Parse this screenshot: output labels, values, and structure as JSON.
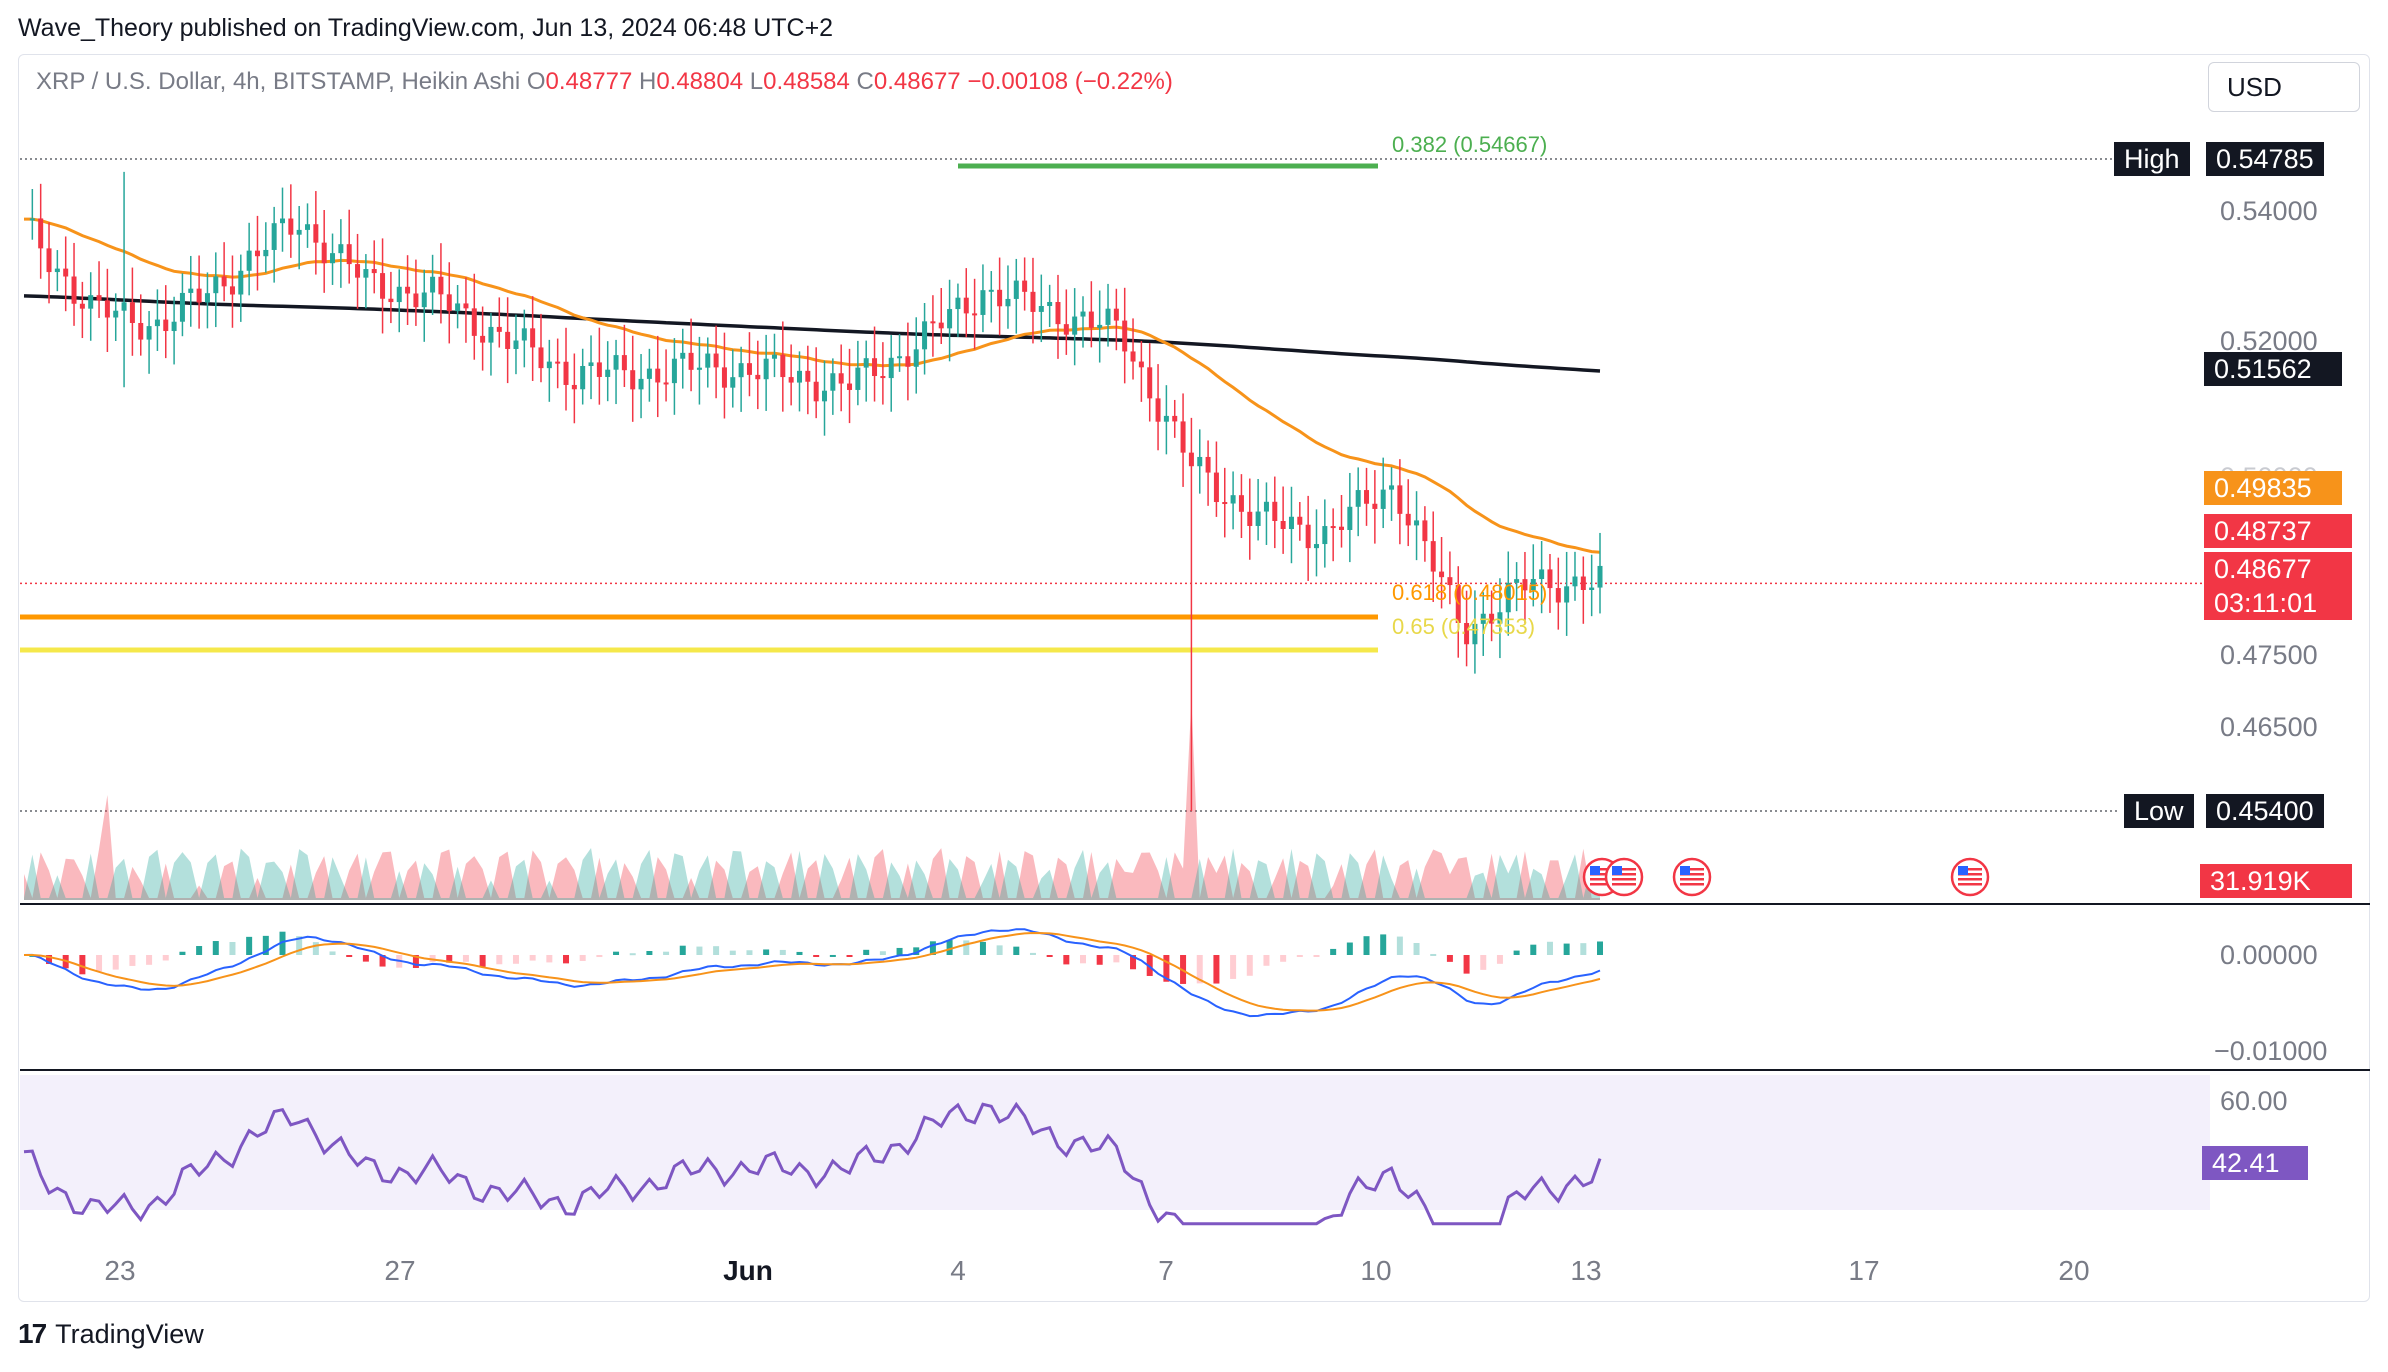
{
  "caption": "Wave_Theory published on TradingView.com, Jun 13, 2024 06:48 UTC+2",
  "symbol": {
    "name": "XRP / U.S. Dollar, 4h, BITSTAMP, Heikin Ashi",
    "o_label": "O",
    "o": "0.48777",
    "h_label": "H",
    "h": "0.48804",
    "l_label": "L",
    "l": "0.48584",
    "c_label": "C",
    "c": "0.48677",
    "change": "−0.00108 (−0.22%)"
  },
  "currency_button": "USD",
  "colors": {
    "up": "#26a69a",
    "down": "#f23645",
    "ema_orange": "#f7931a",
    "ema_black": "#131722",
    "fib_green": "#4caf50",
    "fib_orange": "#ff9800",
    "fib_yellow": "#f5e84a",
    "macd_blue": "#2962ff",
    "rsi_purple": "#7e57c2"
  },
  "price_axis": {
    "ticks": [
      "0.54000",
      "0.52000",
      "0.47500",
      "0.46500"
    ],
    "high_label": "High",
    "high_value": "0.54785",
    "low_label": "Low",
    "low_value": "0.45400",
    "ema_black_value": "0.51562",
    "ema_orange_value": "0.49835",
    "last_price_top": "0.48737",
    "last_price": "0.48677",
    "countdown": "03:11:01",
    "hidden_tick": "0.50000"
  },
  "fib_levels": [
    {
      "label": "0.382 (0.54667)",
      "color": "green"
    },
    {
      "label": "0.618 (0.48015)",
      "color": "orange"
    },
    {
      "label": "0.65 (0.47353)",
      "color": "yellow"
    }
  ],
  "volume_value": "31.919K",
  "macd_axis": {
    "ticks": [
      "0.00000",
      "−0.01000"
    ]
  },
  "rsi_axis": {
    "tick": "60.00",
    "value": "42.41"
  },
  "time_axis": {
    "labels": [
      "23",
      "27",
      "Jun",
      "4",
      "7",
      "10",
      "13",
      "17",
      "20"
    ]
  },
  "footer": {
    "brand": "TradingView",
    "logo": "17"
  },
  "chart_data": {
    "type": "candlestick",
    "title": "XRP / U.S. Dollar, 4h, BITSTAMP, Heikin Ashi",
    "timeframe": "4h",
    "x_range": [
      "May 22",
      "Jun 13"
    ],
    "y_range": [
      0.454,
      0.549
    ],
    "high": 0.54785,
    "low": 0.454,
    "close_points": [
      [
        "May 22",
        0.538
      ],
      [
        "May 23",
        0.526
      ],
      [
        "May 24",
        0.524
      ],
      [
        "May 25",
        0.531
      ],
      [
        "May 26",
        0.539
      ],
      [
        "May 27",
        0.53
      ],
      [
        "May 28",
        0.528
      ],
      [
        "May 29",
        0.522
      ],
      [
        "May 30",
        0.517
      ],
      [
        "May 31",
        0.517
      ],
      [
        "Jun 1",
        0.518
      ],
      [
        "Jun 2",
        0.517
      ],
      [
        "Jun 3",
        0.515
      ],
      [
        "Jun 4",
        0.521
      ],
      [
        "Jun 5",
        0.529
      ],
      [
        "Jun 6",
        0.526
      ],
      [
        "Jun 7",
        0.523
      ],
      [
        "Jun 7 late",
        0.504
      ],
      [
        "Jun 8",
        0.496
      ],
      [
        "Jun 9",
        0.494
      ],
      [
        "Jun 10",
        0.501
      ],
      [
        "Jun 11",
        0.48
      ],
      [
        "Jun 12",
        0.487
      ],
      [
        "Jun 13",
        0.48677
      ]
    ],
    "ema_orange": 0.49835,
    "ema_black": 0.51562,
    "volume_last": "31.919K",
    "macd_range": [
      -0.012,
      0.004
    ],
    "rsi_last": 42.41
  }
}
